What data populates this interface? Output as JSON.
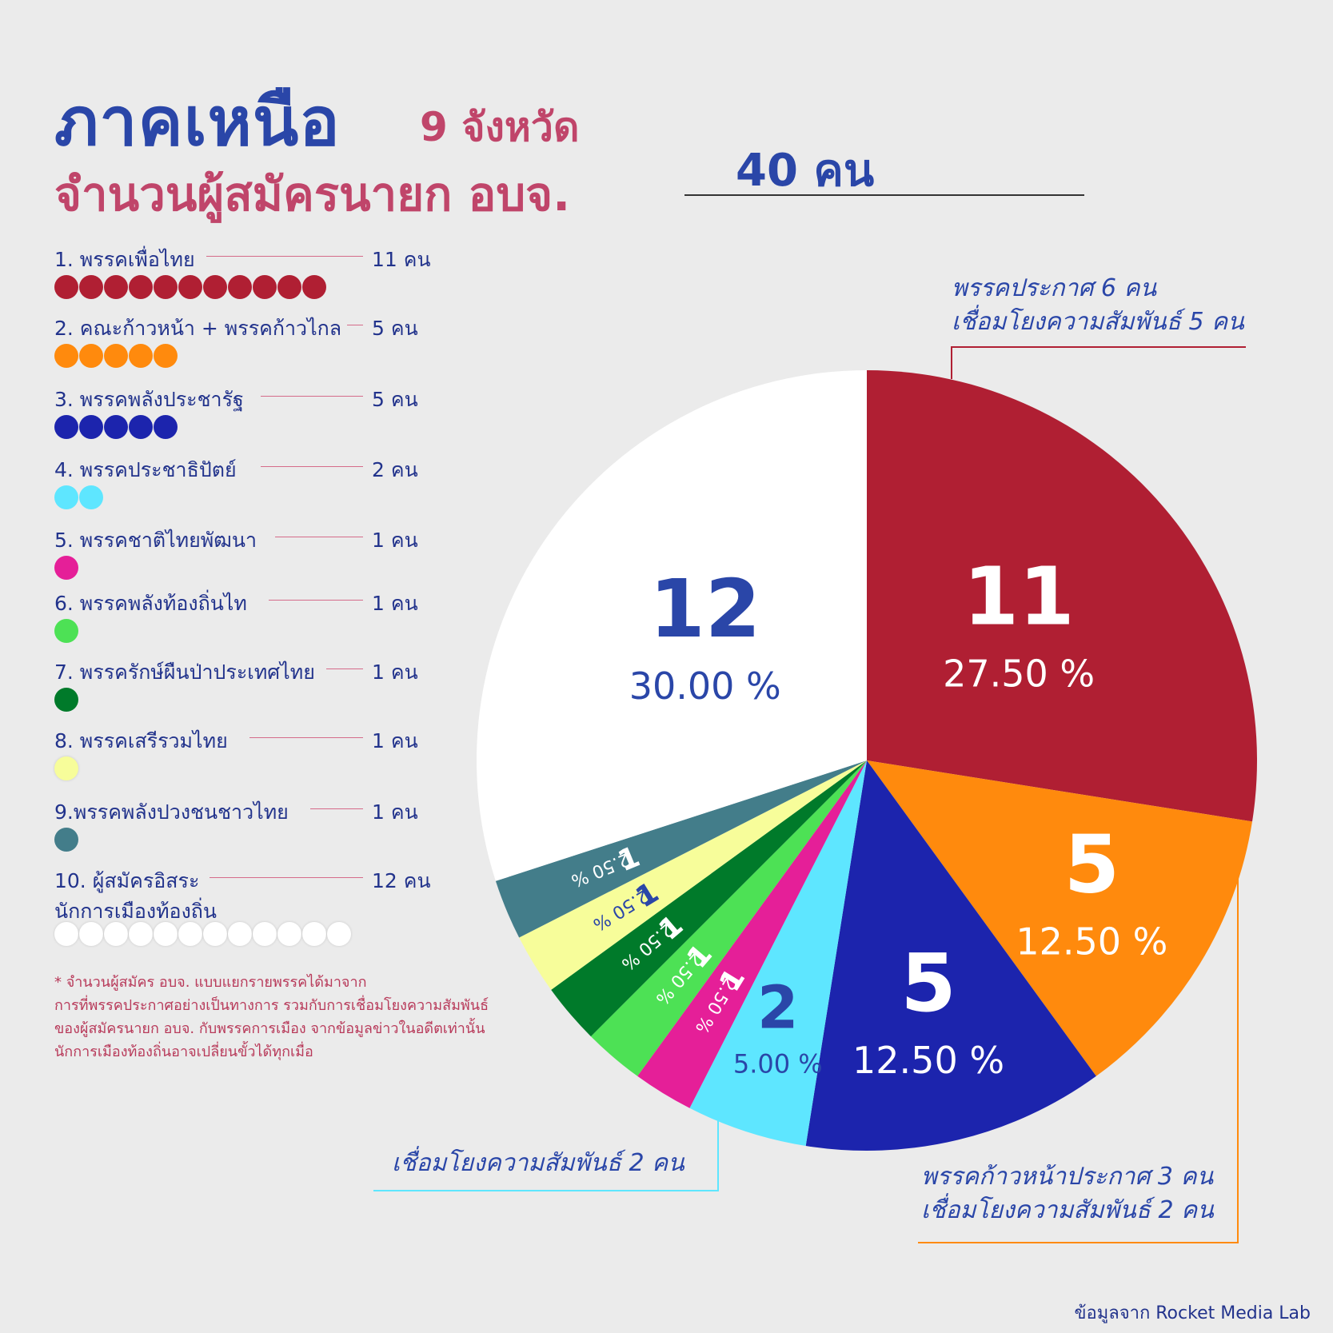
{
  "title": {
    "main": "ภาคเหนือ",
    "sub": "9 จังหวัด",
    "line2": "จำนวนผู้สมัครนายก อบจ.",
    "total": "40 คน"
  },
  "legend": [
    {
      "label": "1. พรรคเพื่อไทย",
      "count": "11 คน",
      "n": 11,
      "color": "#b01f33"
    },
    {
      "label": "2. คณะก้าวหน้า + พรรคก้าวไกล",
      "count": "5 คน",
      "n": 5,
      "color": "#ff8a0d"
    },
    {
      "label": "3. พรรคพลังประชารัฐ",
      "count": "5 คน",
      "n": 5,
      "color": "#1c24ad"
    },
    {
      "label": "4. พรรคประชาธิปัตย์",
      "count": "2 คน",
      "n": 2,
      "color": "#5ee6ff"
    },
    {
      "label": "5. พรรคชาติไทยพัฒนา",
      "count": "1 คน",
      "n": 1,
      "color": "#e51f98"
    },
    {
      "label": "6. พรรคพลังท้องถิ่นไท",
      "count": "1 คน",
      "n": 1,
      "color": "#4de155"
    },
    {
      "label": "7. พรรครักษ์ผืนป่าประเทศไทย",
      "count": "1 คน",
      "n": 1,
      "color": "#007a2a"
    },
    {
      "label": "8. พรรคเสรีรวมไทย",
      "count": "1 คน",
      "n": 1,
      "color": "#f7fd9a"
    },
    {
      "label": "9.พรรคพลังปวงชนชาวไทย",
      "count": "1 คน",
      "n": 1,
      "color": "#437d8a"
    },
    {
      "label": "10. ผู้สมัครอิสระ",
      "label2": "นักการเมืองท้องถิ่น",
      "count": "12 คน",
      "n": 12,
      "color": "#ffffff"
    }
  ],
  "footnote": [
    "* จำนวนผู้สมัคร อบจ. แบบแยกรายพรรคได้มาจาก",
    "การที่พรรคประกาศอย่างเป็นทางการ รวมกับการเชื่อมโยงความสัมพันธ์",
    "ของผู้สมัครนายก อบจ. กับพรรคการเมือง จากข้อมูลข่าวในอดีตเท่านั้น",
    "นักการเมืองท้องถิ่นอาจเปลี่ยนขั้วได้ทุกเมื่อ"
  ],
  "callouts": {
    "pheu_thai": [
      "พรรคประกาศ 6 คน",
      "เชื่อมโยงความสัมพันธ์ 5 คน"
    ],
    "kao_na": [
      "พรรคก้าวหน้าประกาศ 3 คน",
      "เชื่อมโยงความสัมพันธ์ 2 คน"
    ],
    "democrat": [
      "เชื่อมโยงความสัมพันธ์ 2 คน"
    ]
  },
  "source": "ข้อมูลจาก Rocket Media Lab",
  "chart_data": {
    "type": "pie",
    "start": "12 o'clock, clockwise",
    "slices": [
      {
        "party": "1. พรรคเพื่อไทย",
        "value": 11,
        "value_label": "11",
        "pct_label": "27.50 %",
        "color": "#b01f33"
      },
      {
        "party": "2. คณะก้าวหน้า + พรรคก้าวไกล",
        "value": 5,
        "value_label": "5",
        "pct_label": "12.50 %",
        "color": "#ff8a0d"
      },
      {
        "party": "3. พรรคพลังประชารัฐ",
        "value": 5,
        "value_label": "5",
        "pct_label": "12.50 %",
        "color": "#1c24ad"
      },
      {
        "party": "4. พรรคประชาธิปัตย์",
        "value": 2,
        "value_label": "2",
        "pct_label": "5.00 %",
        "color": "#5ee6ff"
      },
      {
        "party": "5. พรรคชาติไทยพัฒนา",
        "value": 1,
        "value_label": "1",
        "pct_label": "2.50 %",
        "color": "#e51f98"
      },
      {
        "party": "6. พรรคพลังท้องถิ่นไท",
        "value": 1,
        "value_label": "1",
        "pct_label": "2.50 %",
        "color": "#4de155"
      },
      {
        "party": "7. พรรครักษ์ผืนป่าประเทศไทย",
        "value": 1,
        "value_label": "1",
        "pct_label": "2.50 %",
        "color": "#007a2a"
      },
      {
        "party": "8. พรรคเสรีรวมไทย",
        "value": 1,
        "value_label": "1",
        "pct_label": "2.50 %",
        "color": "#f7fd9a"
      },
      {
        "party": "9.พรรคพลังปวงชนชาวไทย",
        "value": 1,
        "value_label": "1",
        "pct_label": "2.50 %",
        "color": "#437d8a"
      },
      {
        "party": "10. ผู้สมัครอิสระ นักการเมืองท้องถิ่น",
        "value": 12,
        "value_label": "12",
        "pct_label": "30.00 %",
        "color": "#ffffff"
      }
    ]
  }
}
